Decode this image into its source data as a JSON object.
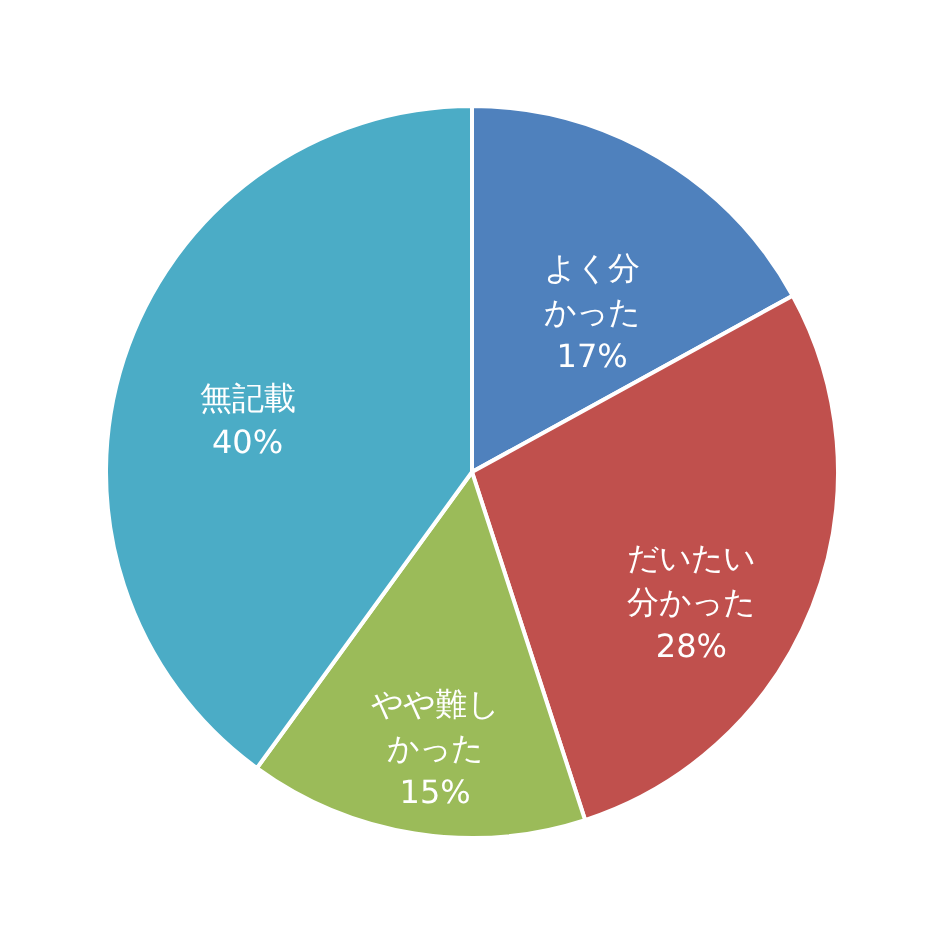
{
  "chart_data": {
    "type": "pie",
    "categories": [
      "よく分かった",
      "だいたい分かった",
      "やや難しかった",
      "無記載"
    ],
    "values": [
      17,
      28,
      15,
      40
    ],
    "value_labels": [
      "17%",
      "28%",
      "15%",
      "40%"
    ],
    "colors": [
      "#4f81bd",
      "#c0504d",
      "#9bbb59",
      "#4bacc6"
    ]
  }
}
